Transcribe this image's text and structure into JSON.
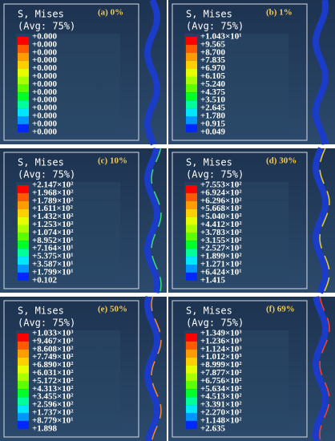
{
  "panels": [
    {
      "label": "(a) 0%",
      "title": "S, Mises",
      "subtitle": "(Avg: 75%)",
      "levels": [
        "+0.000",
        "+0.000",
        "+0.000",
        "+0.000",
        "+0.000",
        "+0.000",
        "+0.000",
        "+0.000",
        "+0.000",
        "+0.000",
        "+0.000",
        "+0.000",
        "+0.000"
      ]
    },
    {
      "label": "(b) 1%",
      "title": "S, Mises",
      "subtitle": "(Avg: 75%)",
      "levels": [
        "+1.043×10¹",
        "+9.565",
        "+8.700",
        "+7.835",
        "+6.970",
        "+6.105",
        "+5.240",
        "+4.375",
        "+3.510",
        "+2.645",
        "+1.780",
        "+0.915",
        "+0.049"
      ]
    },
    {
      "label": "(c) 10%",
      "title": "S, Mises",
      "subtitle": "(Avg: 75%)",
      "levels": [
        "+2.147×10²",
        "+1.968×10²",
        "+1.789×10²",
        "+1.611×10²",
        "+1.432×10²",
        "+1.253×10²",
        "+1.074×10²",
        "+8.952×10¹",
        "+7.164×10¹",
        "+5.375×10¹",
        "+3.587×10¹",
        "+1.799×10¹",
        "+0.102"
      ]
    },
    {
      "label": "(d) 30%",
      "title": "S, Mises",
      "subtitle": "(Avg: 75%)",
      "levels": [
        "+7.553×10²",
        "+6.924×10²",
        "+6.296×10²",
        "+5.668×10²",
        "+5.040×10²",
        "+4.412×10²",
        "+3.783×10²",
        "+3.155×10²",
        "+2.527×10²",
        "+1.899×10²",
        "+1.271×10²",
        "+6.424×10¹",
        "+1.415"
      ]
    },
    {
      "label": "(e) 50%",
      "title": "S, Mises",
      "subtitle": "(Avg: 75%)",
      "levels": [
        "+1.033×10³",
        "+9.467×10²",
        "+8.608×10²",
        "+7.749×10²",
        "+6.890×10²",
        "+6.031×10²",
        "+5.172×10²",
        "+4.313×10²",
        "+3.455×10²",
        "+2.596×10²",
        "+1.737×10²",
        "+8.779×10¹",
        "+1.898"
      ]
    },
    {
      "label": "(f) 69%",
      "title": "S, Mises",
      "subtitle": "(Avg: 75%)",
      "levels": [
        "+1.349×10³",
        "+1.236×10³",
        "+1.124×10³",
        "+1.012×10³",
        "+8.999×10²",
        "+7.877×10²",
        "+6.756×10²",
        "+5.634×10²",
        "+4.513×10²",
        "+3.391×10²",
        "+2.270×10²",
        "+1.148×10²",
        "+2.635"
      ]
    }
  ]
}
